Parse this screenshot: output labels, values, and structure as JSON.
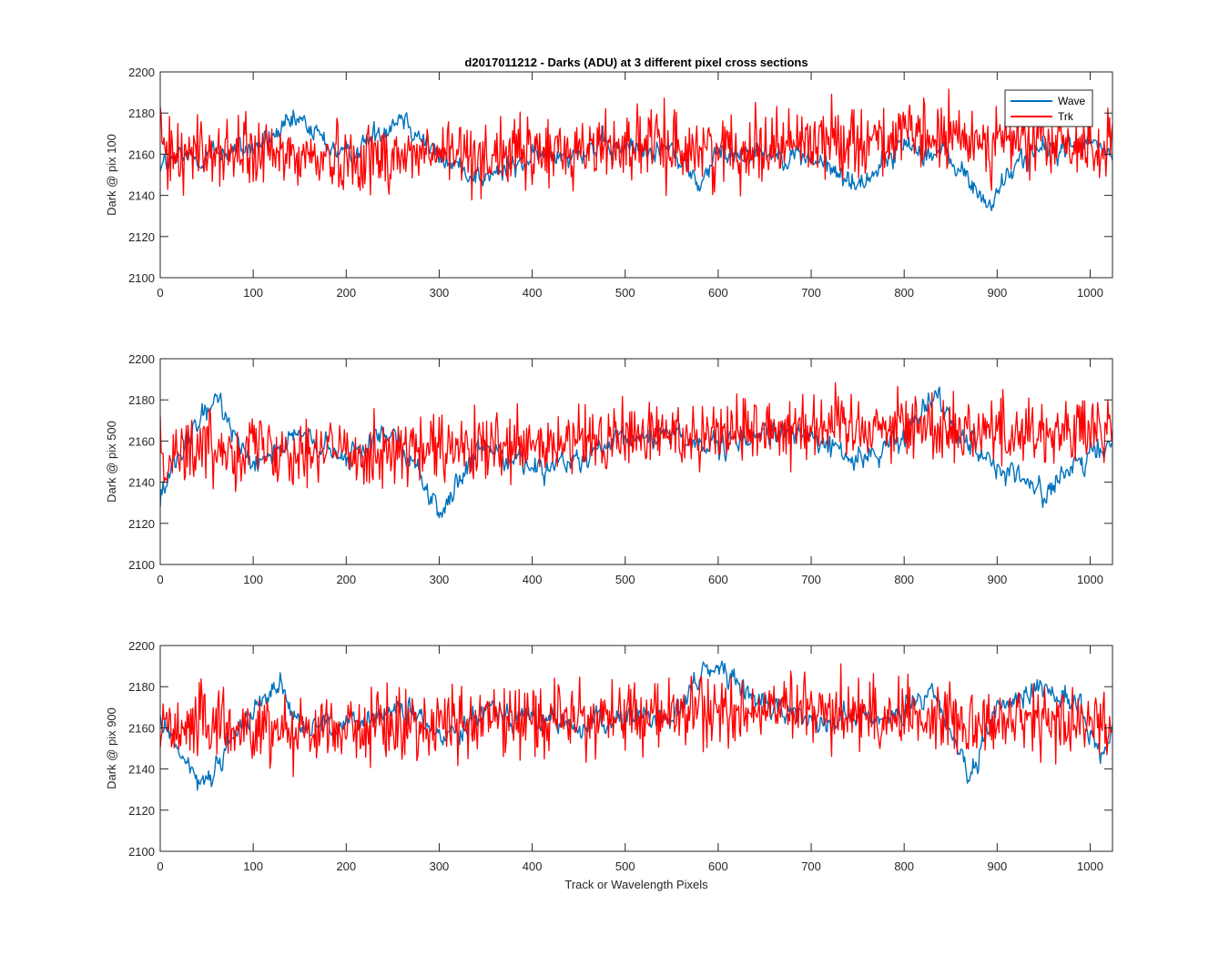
{
  "figure_title": "d2017011212 - Darks (ADU) at 3 different pixel cross sections",
  "colors": {
    "wave": "#0072BD",
    "trk": "#FF0000",
    "axis": "#262626"
  },
  "legend": {
    "items": [
      "Wave",
      "Trk"
    ],
    "placement": "top-right"
  },
  "chart_data": [
    {
      "type": "line",
      "title": "d2017011212 - Darks (ADU) at 3 different pixel cross sections",
      "xlabel": "",
      "ylabel": "Dark @ pix 100",
      "xlim": [
        0,
        1024
      ],
      "ylim": [
        2100,
        2200
      ],
      "xticks": [
        0,
        100,
        200,
        300,
        400,
        500,
        600,
        700,
        800,
        900,
        1000
      ],
      "yticks": [
        2100,
        2120,
        2140,
        2160,
        2180,
        2200
      ],
      "grid": false,
      "legend": "top-right",
      "series": [
        {
          "name": "Wave",
          "x": [
            0,
            50,
            100,
            150,
            200,
            260,
            300,
            350,
            400,
            450,
            500,
            550,
            580,
            600,
            650,
            700,
            750,
            800,
            850,
            890,
            930,
            1000,
            1024
          ],
          "y": [
            2155,
            2160,
            2163,
            2176,
            2158,
            2180,
            2158,
            2148,
            2158,
            2163,
            2163,
            2162,
            2145,
            2160,
            2162,
            2158,
            2145,
            2165,
            2158,
            2135,
            2160,
            2165,
            2160
          ]
        },
        {
          "name": "Trk",
          "x": [
            0,
            100,
            200,
            300,
            400,
            500,
            600,
            700,
            800,
            900,
            1024
          ],
          "y": [
            2162,
            2160,
            2158,
            2160,
            2160,
            2165,
            2162,
            2167,
            2168,
            2167,
            2163
          ]
        }
      ]
    },
    {
      "type": "line",
      "xlabel": "",
      "ylabel": "Dark @ pix 500",
      "xlim": [
        0,
        1024
      ],
      "ylim": [
        2100,
        2200
      ],
      "xticks": [
        0,
        100,
        200,
        300,
        400,
        500,
        600,
        700,
        800,
        900,
        1000
      ],
      "yticks": [
        2100,
        2120,
        2140,
        2160,
        2180,
        2200
      ],
      "grid": false,
      "series": [
        {
          "name": "Wave",
          "x": [
            0,
            30,
            60,
            100,
            150,
            200,
            250,
            300,
            350,
            400,
            450,
            500,
            550,
            600,
            650,
            700,
            750,
            800,
            830,
            860,
            900,
            950,
            1000,
            1024
          ],
          "y": [
            2132,
            2160,
            2180,
            2150,
            2162,
            2150,
            2168,
            2125,
            2158,
            2148,
            2150,
            2160,
            2165,
            2155,
            2165,
            2162,
            2150,
            2162,
            2185,
            2165,
            2148,
            2135,
            2152,
            2160
          ]
        },
        {
          "name": "Trk",
          "x": [
            0,
            100,
            200,
            300,
            400,
            500,
            600,
            700,
            800,
            900,
            1024
          ],
          "y": [
            2155,
            2158,
            2155,
            2155,
            2156,
            2162,
            2165,
            2168,
            2168,
            2165,
            2164
          ]
        }
      ]
    },
    {
      "type": "line",
      "xlabel": "Track or Wavelength Pixels",
      "ylabel": "Dark @ pix 900",
      "xlim": [
        0,
        1024
      ],
      "ylim": [
        2100,
        2200
      ],
      "xticks": [
        0,
        100,
        200,
        300,
        400,
        500,
        600,
        700,
        800,
        900,
        1000
      ],
      "yticks": [
        2100,
        2120,
        2140,
        2160,
        2180,
        2200
      ],
      "grid": false,
      "series": [
        {
          "name": "Wave",
          "x": [
            0,
            20,
            40,
            60,
            100,
            130,
            150,
            200,
            260,
            300,
            350,
            400,
            450,
            500,
            550,
            580,
            600,
            650,
            700,
            750,
            800,
            830,
            850,
            870,
            900,
            950,
            990,
            1010,
            1024
          ],
          "y": [
            2165,
            2150,
            2132,
            2140,
            2170,
            2182,
            2162,
            2160,
            2170,
            2155,
            2170,
            2165,
            2160,
            2165,
            2165,
            2185,
            2190,
            2170,
            2165,
            2165,
            2168,
            2175,
            2160,
            2132,
            2170,
            2180,
            2170,
            2145,
            2160
          ]
        },
        {
          "name": "Trk",
          "x": [
            0,
            100,
            200,
            300,
            400,
            500,
            600,
            700,
            800,
            900,
            1024
          ],
          "y": [
            2162,
            2160,
            2160,
            2162,
            2165,
            2165,
            2168,
            2168,
            2166,
            2163,
            2163
          ]
        }
      ]
    }
  ]
}
